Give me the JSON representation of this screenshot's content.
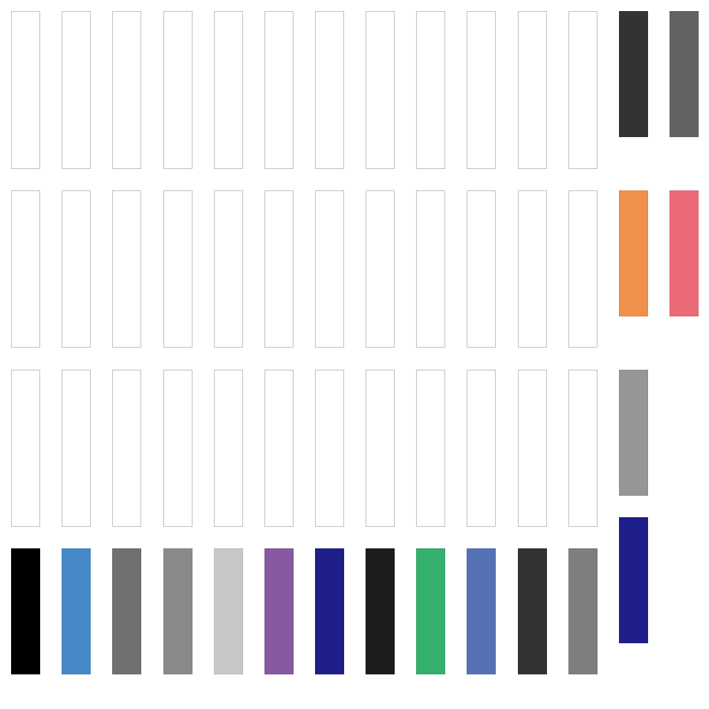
{
  "palette": {
    "grid_rows": [
      {
        "row": 1,
        "cells": [
          "empty",
          "empty",
          "empty",
          "empty",
          "empty",
          "empty",
          "empty",
          "empty",
          "empty",
          "empty",
          "empty",
          "empty"
        ]
      },
      {
        "row": 2,
        "cells": [
          "empty",
          "empty",
          "empty",
          "empty",
          "empty",
          "empty",
          "empty",
          "empty",
          "empty",
          "empty",
          "empty",
          "empty"
        ]
      },
      {
        "row": 3,
        "cells": [
          "empty",
          "empty",
          "empty",
          "empty",
          "empty",
          "empty",
          "empty",
          "empty",
          "empty",
          "empty",
          "empty",
          "empty"
        ]
      },
      {
        "row": 4,
        "cells": [
          "#000000",
          "#4589c9",
          "#707070",
          "#8a8a8a",
          "#c8c8c8",
          "#8858a0",
          "#1e1f88",
          "#1c1c1c",
          "#33b06d",
          "#5572b6",
          "#333333",
          "#7f7f7f"
        ]
      }
    ],
    "side_swatches": [
      {
        "group": 1,
        "colors": [
          "#333333",
          "#636363"
        ]
      },
      {
        "group": 2,
        "colors": [
          "#f0904a",
          "#ea6a77"
        ]
      },
      {
        "group": 3,
        "colors": [
          "#969696"
        ]
      },
      {
        "group": 4,
        "colors": [
          "#1e1f88"
        ]
      }
    ]
  }
}
